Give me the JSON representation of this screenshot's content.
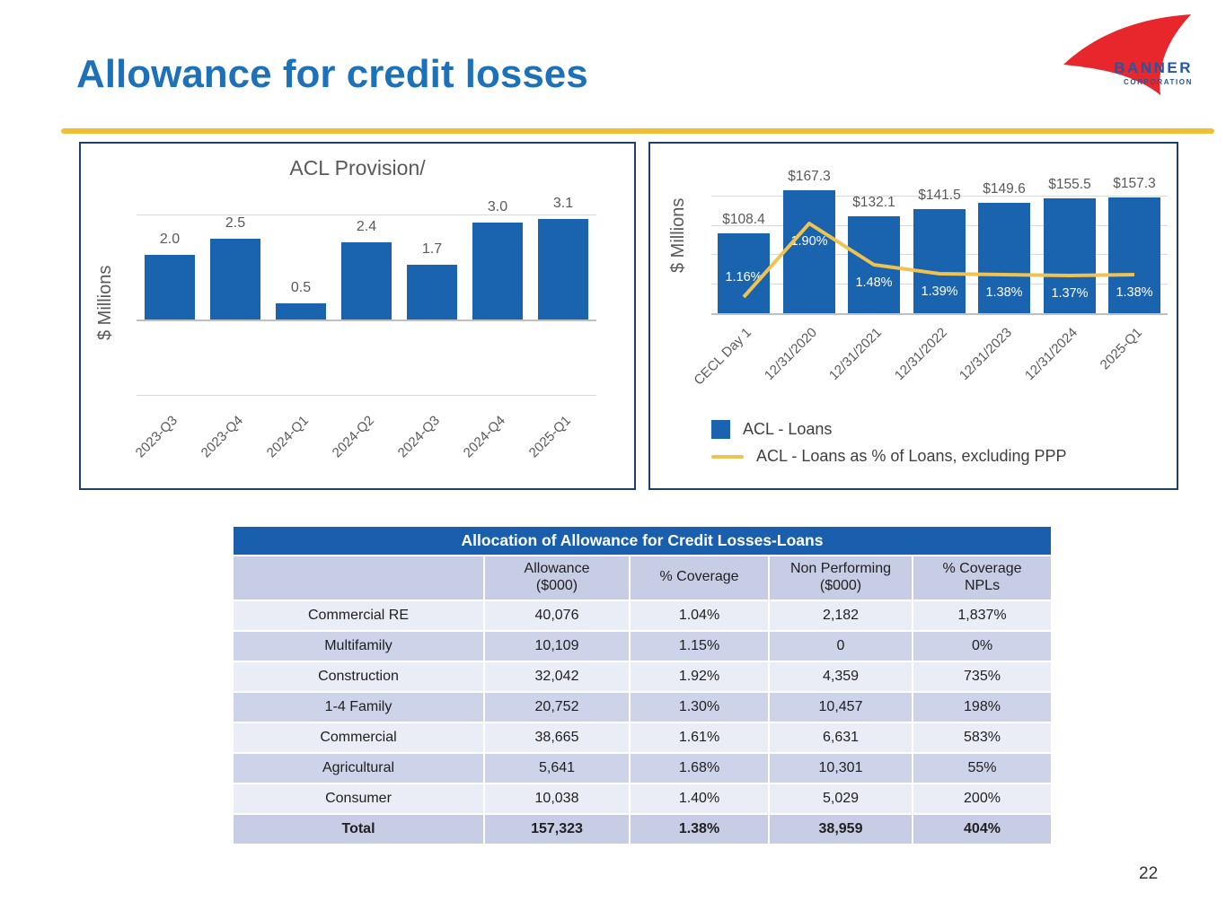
{
  "slide": {
    "title": "Allowance for credit losses",
    "page_number": "22"
  },
  "logo": {
    "name": "BANNER",
    "subname": "CORPORATION"
  },
  "colors": {
    "title_blue": "#1C71B8",
    "bar_blue": "#1A63AE",
    "gold": "#F2BE33",
    "panel_border_navy": "#1F4068",
    "table_header_blue": "#1A5FAE",
    "logo_red": "#E8272C"
  },
  "chart_data": [
    {
      "type": "bar",
      "title": "ACL Provision/",
      "ylabel": "$ Millions",
      "categories": [
        "2023-Q3",
        "2023-Q4",
        "2024-Q1",
        "2024-Q2",
        "2024-Q3",
        "2024-Q4",
        "2025-Q1"
      ],
      "values": [
        2.0,
        2.5,
        0.5,
        2.4,
        1.7,
        3.0,
        3.1
      ],
      "value_labels": [
        "2.0",
        "2.5",
        "0.5",
        "2.4",
        "1.7",
        "3.0",
        "3.1"
      ],
      "bar_color": "#1A63AE",
      "grid": true,
      "legend_position": "none"
    },
    {
      "type": "bar",
      "title": "",
      "ylabel": "$ Millions",
      "categories": [
        "CECL Day 1",
        "12/31/2020",
        "12/31/2021",
        "12/31/2022",
        "12/31/2023",
        "12/31/2024",
        "2025-Q1"
      ],
      "series": [
        {
          "name": "ACL - Loans",
          "type": "bar",
          "values": [
            108.4,
            167.3,
            132.1,
            141.5,
            149.6,
            155.5,
            157.3
          ],
          "labels": [
            "$108.4",
            "$167.3",
            "$132.1",
            "$141.5",
            "$149.6",
            "$155.5",
            "$157.3"
          ],
          "color": "#1A63AE"
        },
        {
          "name": "ACL - Loans as % of Loans, excluding PPP",
          "type": "line",
          "values": [
            1.16,
            1.9,
            1.48,
            1.39,
            1.38,
            1.37,
            1.38
          ],
          "labels": [
            "1.16%",
            "1.90%",
            "1.48%",
            "1.39%",
            "1.38%",
            "1.37%",
            "1.38%"
          ],
          "color": "#F0C24F"
        }
      ],
      "legend": [
        "ACL - Loans",
        "ACL - Loans as % of Loans, excluding PPP"
      ],
      "legend_position": "bottom-left",
      "grid": true
    }
  ],
  "table": {
    "title": "Allocation of Allowance for Credit Losses-Loans",
    "columns": [
      "",
      "Allowance\n($000)",
      "% Coverage",
      "Non Performing\n($000)",
      "% Coverage\nNPLs"
    ],
    "rows": [
      [
        "Commercial RE",
        "40,076",
        "1.04%",
        "2,182",
        "1,837%"
      ],
      [
        "Multifamily",
        "10,109",
        "1.15%",
        "0",
        "0%"
      ],
      [
        "Construction",
        "32,042",
        "1.92%",
        "4,359",
        "735%"
      ],
      [
        "1-4 Family",
        "20,752",
        "1.30%",
        "10,457",
        "198%"
      ],
      [
        "Commercial",
        "38,665",
        "1.61%",
        "6,631",
        "583%"
      ],
      [
        "Agricultural",
        "5,641",
        "1.68%",
        "10,301",
        "55%"
      ],
      [
        "Consumer",
        "10,038",
        "1.40%",
        "5,029",
        "200%"
      ]
    ],
    "total_row": [
      "Total",
      "157,323",
      "1.38%",
      "38,959",
      "404%"
    ]
  }
}
